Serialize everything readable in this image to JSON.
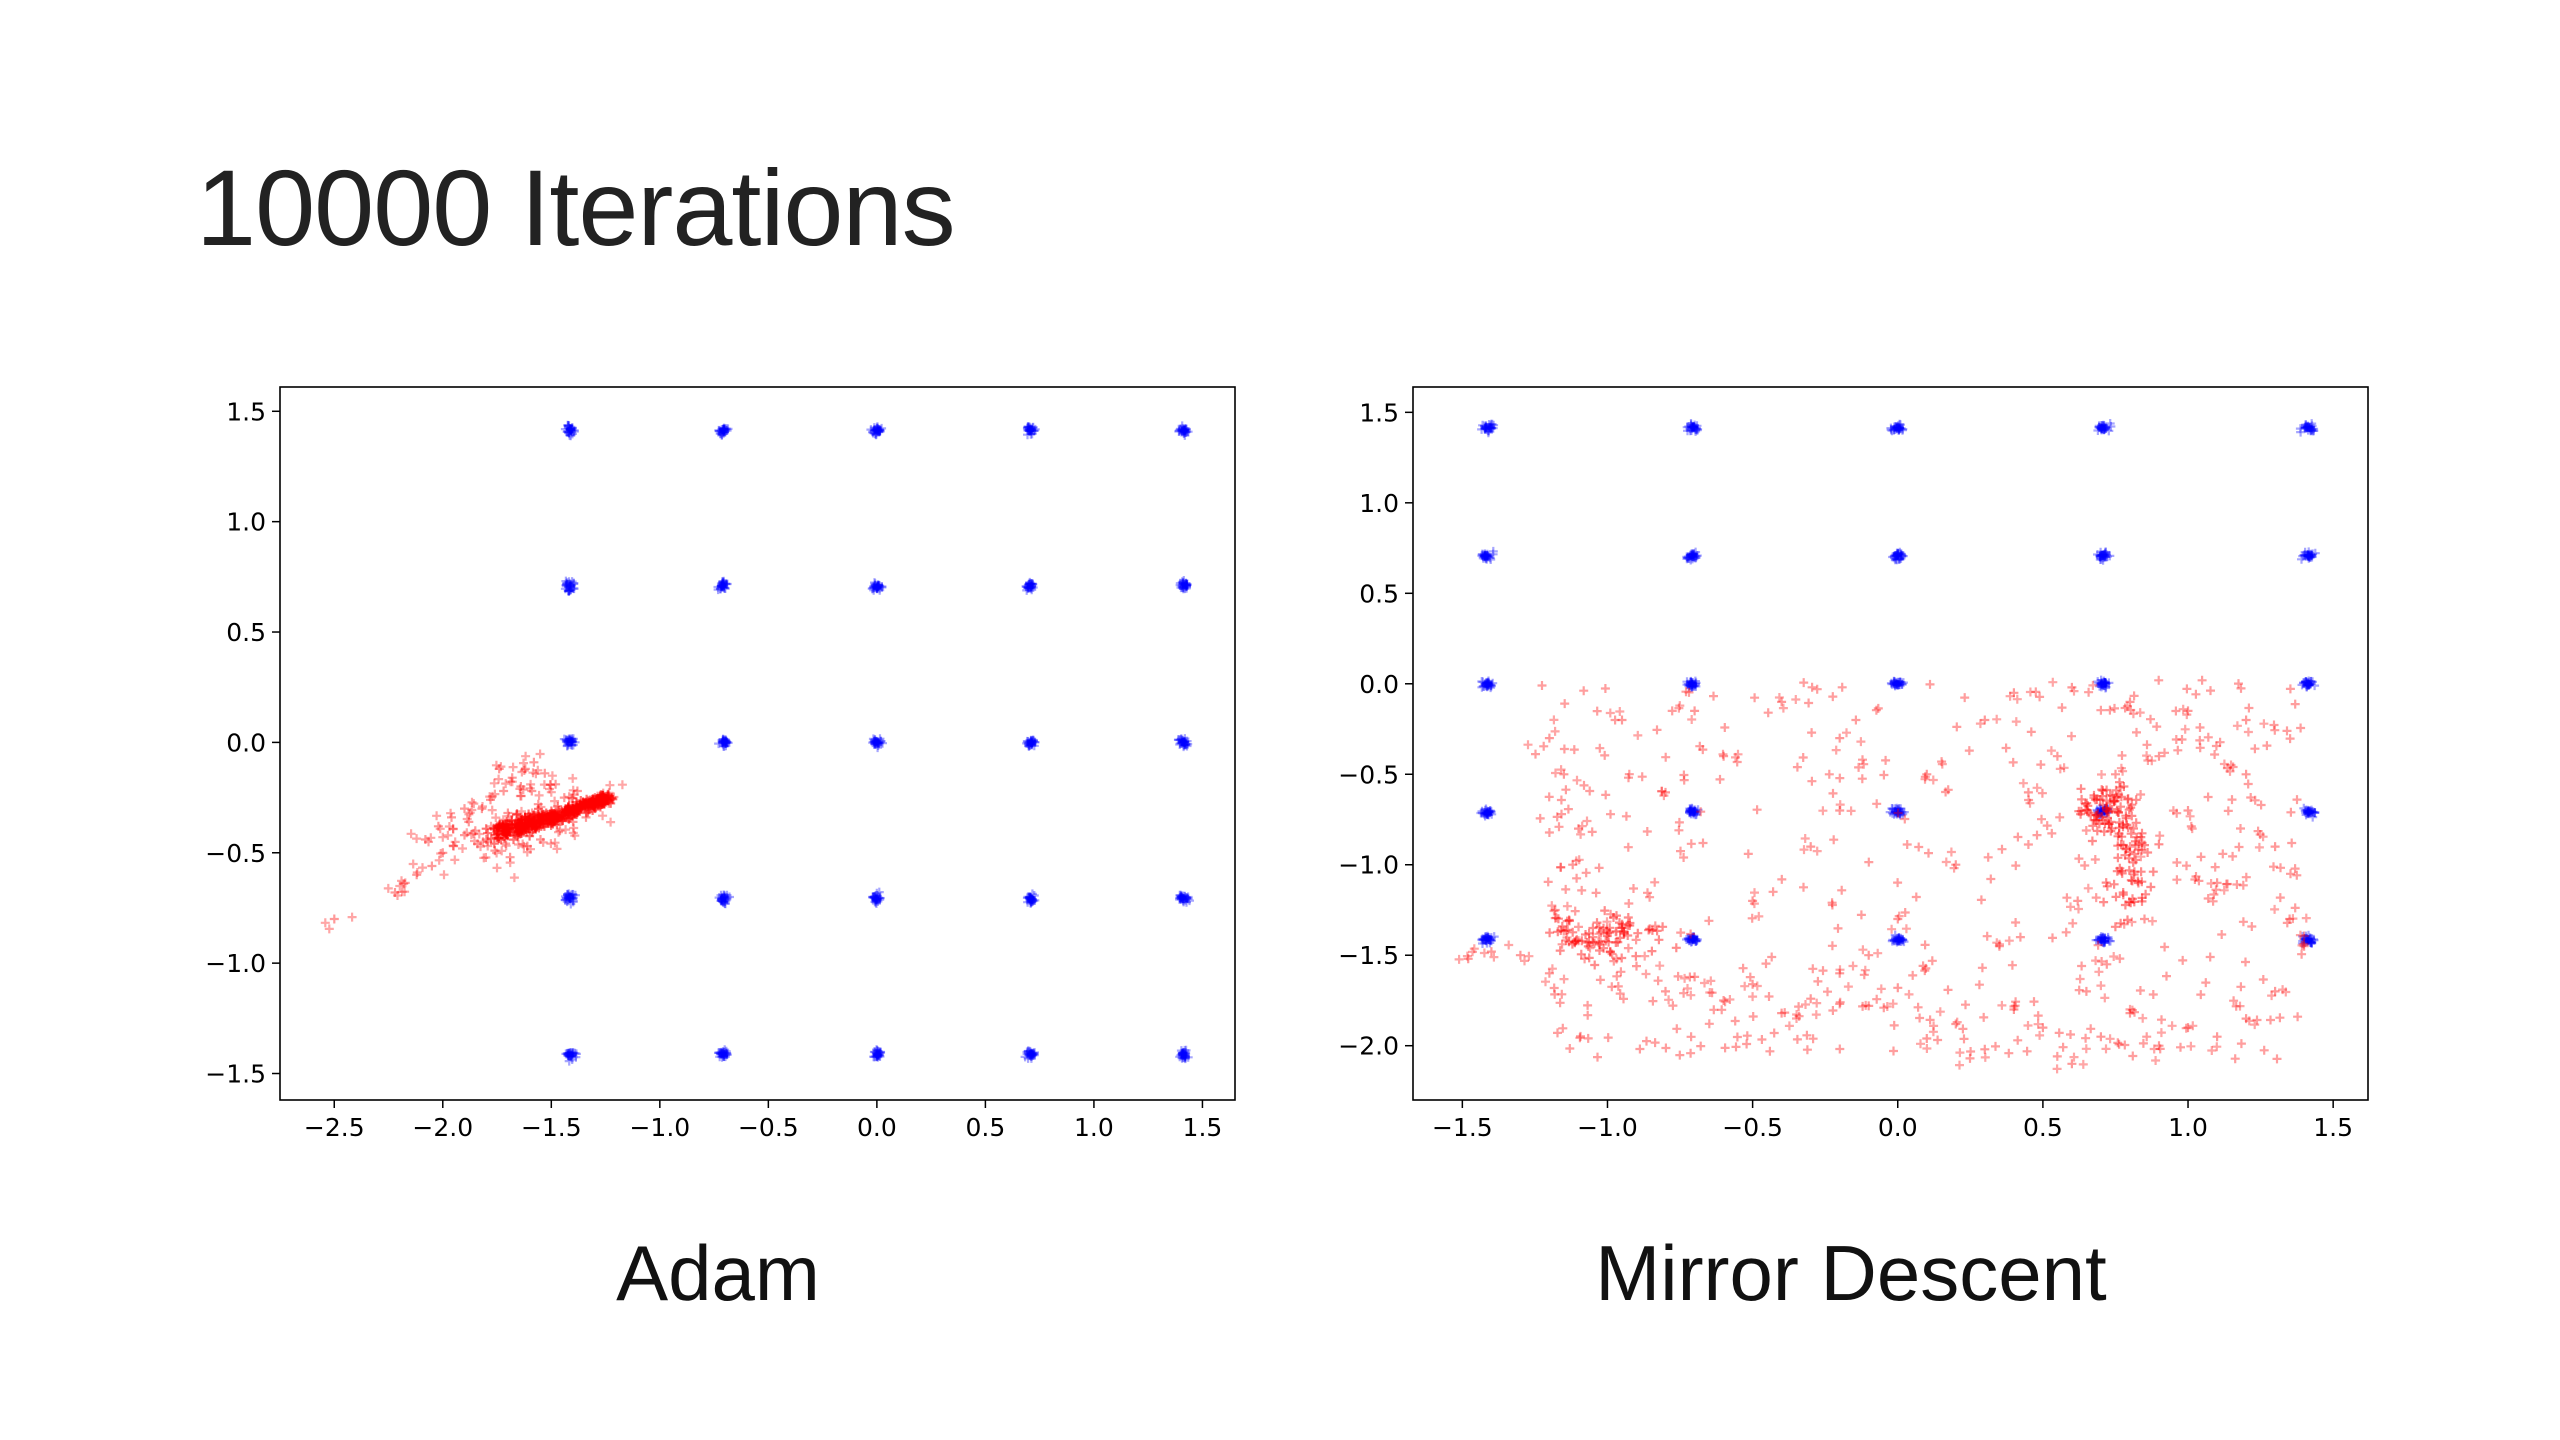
{
  "slide": {
    "title": "10000 Iterations"
  },
  "colors": {
    "target_points": "#0000ff",
    "generated_points": "#ff0000",
    "axes": "#000000"
  },
  "chart_data": [
    {
      "type": "scatter",
      "caption": "Adam",
      "xlim": [
        -2.75,
        1.65
      ],
      "ylim": [
        -1.62,
        1.61
      ],
      "xticks": [
        -2.5,
        -2.0,
        -1.5,
        -1.0,
        -0.5,
        0.0,
        0.5,
        1.0,
        1.5
      ],
      "xtick_labels": [
        "−2.5",
        "−2.0",
        "−1.5",
        "−1.0",
        "−0.5",
        "0.0",
        "0.5",
        "1.0",
        "1.5"
      ],
      "yticks": [
        -1.5,
        -1.0,
        -0.5,
        0.0,
        0.5,
        1.0,
        1.5
      ],
      "ytick_labels": [
        "−1.5",
        "−1.0",
        "−0.5",
        "0.0",
        "0.5",
        "1.0",
        "1.5"
      ],
      "grid": false,
      "series": [
        {
          "marker": "+",
          "color": "#0000ff",
          "clusters": {
            "x_centers": [
              -1.414,
              -0.707,
              0.0,
              0.707,
              1.414
            ],
            "y_centers": [
              -1.414,
              -0.707,
              0.0,
              0.707,
              1.414
            ],
            "spread": 0.02
          }
        },
        {
          "marker": "+",
          "color": "#ff0000",
          "points": [
            [
              -2.5,
              -0.8
            ],
            [
              -2.22,
              -0.68
            ],
            [
              -2.18,
              -0.64
            ],
            [
              -2.12,
              -0.6
            ],
            [
              -2.05,
              -0.56
            ],
            [
              -2.0,
              -0.5
            ],
            [
              -1.95,
              -0.47
            ],
            [
              -1.9,
              -0.42
            ],
            [
              -1.88,
              -0.36
            ],
            [
              -1.85,
              -0.4
            ],
            [
              -1.82,
              -0.3
            ],
            [
              -1.8,
              -0.44
            ],
            [
              -1.78,
              -0.26
            ],
            [
              -1.75,
              -0.38
            ],
            [
              -1.72,
              -0.22
            ],
            [
              -1.7,
              -0.32
            ],
            [
              -1.68,
              -0.16
            ],
            [
              -1.66,
              -0.41
            ],
            [
              -1.64,
              -0.2
            ],
            [
              -1.62,
              -0.12
            ],
            [
              -1.6,
              -0.35
            ],
            [
              -1.58,
              -0.09
            ],
            [
              -1.56,
              -0.28
            ],
            [
              -1.55,
              -0.44
            ],
            [
              -1.53,
              -0.14
            ],
            [
              -1.5,
              -0.33
            ],
            [
              -1.48,
              -0.19
            ],
            [
              -1.46,
              -0.4
            ],
            [
              -1.44,
              -0.25
            ],
            [
              -1.42,
              -0.31
            ],
            [
              -1.4,
              -0.36
            ],
            [
              -1.38,
              -0.22
            ],
            [
              -1.36,
              -0.29
            ],
            [
              -1.34,
              -0.34
            ],
            [
              -1.32,
              -0.27
            ],
            [
              -1.3,
              -0.3
            ],
            [
              -1.28,
              -0.26
            ],
            [
              -1.26,
              -0.28
            ],
            [
              -1.24,
              -0.24
            ],
            [
              -1.22,
              -0.25
            ],
            [
              -1.9,
              -0.3
            ],
            [
              -1.84,
              -0.46
            ],
            [
              -1.76,
              -0.49
            ],
            [
              -1.69,
              -0.52
            ],
            [
              -1.61,
              -0.47
            ],
            [
              -2.08,
              -0.44
            ],
            [
              -2.02,
              -0.38
            ],
            [
              -1.96,
              -0.34
            ],
            [
              -1.74,
              -0.12
            ],
            [
              -1.59,
              -0.22
            ]
          ],
          "dense_band": {
            "start": [
              -1.75,
              -0.42
            ],
            "end": [
              -1.23,
              -0.25
            ],
            "half_width": [
              0.07,
              0.02
            ]
          }
        }
      ]
    },
    {
      "type": "scatter",
      "caption": "Mirror Descent",
      "xlim": [
        -1.67,
        1.62
      ],
      "ylim": [
        -2.3,
        1.64
      ],
      "xticks": [
        -1.5,
        -1.0,
        -0.5,
        0.0,
        0.5,
        1.0,
        1.5
      ],
      "xtick_labels": [
        "−1.5",
        "−1.0",
        "−0.5",
        "0.0",
        "0.5",
        "1.0",
        "1.5"
      ],
      "yticks": [
        -2.0,
        -1.5,
        -1.0,
        -0.5,
        0.0,
        0.5,
        1.0,
        1.5
      ],
      "ytick_labels": [
        "−2.0",
        "−1.5",
        "−1.0",
        "−0.5",
        "0.0",
        "0.5",
        "1.0",
        "1.5"
      ],
      "grid": false,
      "series": [
        {
          "marker": "+",
          "color": "#0000ff",
          "clusters": {
            "x_centers": [
              -1.414,
              -0.707,
              0.0,
              0.707,
              1.414
            ],
            "y_centers": [
              -1.414,
              -0.707,
              0.0,
              0.707,
              1.414
            ],
            "spread": 0.02
          }
        },
        {
          "marker": "+",
          "color": "#ff0000",
          "points": [
            [
              -1.48,
              -1.52
            ],
            [
              -1.4,
              -1.48
            ],
            [
              -1.3,
              -1.5
            ],
            [
              -1.2,
              -1.6
            ],
            [
              -1.1,
              -1.42
            ],
            [
              -1.0,
              -1.38
            ],
            [
              -0.9,
              -1.56
            ],
            [
              -0.8,
              -1.7
            ],
            [
              -0.7,
              -1.62
            ],
            [
              -0.6,
              -1.75
            ],
            [
              -0.5,
              -1.66
            ],
            [
              -0.4,
              -1.82
            ],
            [
              -0.3,
              -1.74
            ],
            [
              -0.2,
              -1.6
            ],
            [
              -0.1,
              -1.78
            ],
            [
              0.0,
              -1.68
            ],
            [
              0.1,
              -1.96
            ],
            [
              0.2,
              -1.88
            ],
            [
              0.3,
              -2.02
            ],
            [
              0.4,
              -1.8
            ],
            [
              0.5,
              -1.9
            ],
            [
              0.6,
              -2.1
            ],
            [
              0.7,
              -1.95
            ],
            [
              0.8,
              -1.82
            ],
            [
              0.9,
              -2.0
            ],
            [
              1.0,
              -1.9
            ],
            [
              1.1,
              -1.95
            ],
            [
              1.2,
              -1.85
            ],
            [
              1.3,
              -1.7
            ],
            [
              1.4,
              -1.45
            ],
            [
              -1.2,
              -0.3
            ],
            [
              -1.15,
              -0.5
            ],
            [
              -1.1,
              -0.8
            ],
            [
              -1.12,
              -1.0
            ],
            [
              -1.18,
              -1.25
            ],
            [
              -1.05,
              -1.4
            ],
            [
              -0.95,
              -0.2
            ],
            [
              -0.8,
              -0.6
            ],
            [
              -0.6,
              -0.4
            ],
            [
              -0.5,
              -1.2
            ],
            [
              -0.3,
              -0.9
            ],
            [
              -0.2,
              -0.3
            ],
            [
              0.1,
              -0.5
            ],
            [
              0.2,
              -1.0
            ],
            [
              0.3,
              -0.2
            ],
            [
              0.45,
              -0.6
            ],
            [
              0.55,
              -0.4
            ],
            [
              0.62,
              -1.2
            ],
            [
              0.75,
              -0.5
            ],
            [
              0.8,
              -0.9
            ],
            [
              0.85,
              -1.3
            ],
            [
              0.9,
              -0.4
            ],
            [
              1.0,
              -0.7
            ],
            [
              1.1,
              -1.1
            ],
            [
              1.2,
              -0.5
            ],
            [
              1.3,
              -0.9
            ],
            [
              1.35,
              -1.3
            ],
            [
              1.2,
              -0.2
            ],
            [
              1.0,
              -0.15
            ],
            [
              0.8,
              -0.1
            ],
            [
              0.6,
              -0.02
            ],
            [
              0.4,
              -0.05
            ],
            [
              -0.4,
              -0.1
            ],
            [
              -0.7,
              -0.15
            ],
            [
              -0.2,
              -0.7
            ],
            [
              0.0,
              -1.3
            ],
            [
              -0.1,
              -1.5
            ],
            [
              0.35,
              -1.45
            ],
            [
              0.65,
              -1.7
            ],
            [
              0.72,
              -1.55
            ]
          ],
          "dense_regions": [
            {
              "center": [
                -1.0,
                -1.4
              ],
              "radius": [
                0.18,
                0.12
              ]
            },
            {
              "center": [
                0.72,
                -0.7
              ],
              "radius": [
                0.1,
                0.14
              ]
            },
            {
              "center": [
                0.8,
                -1.0
              ],
              "radius": [
                0.08,
                0.3
              ]
            }
          ]
        }
      ]
    }
  ]
}
